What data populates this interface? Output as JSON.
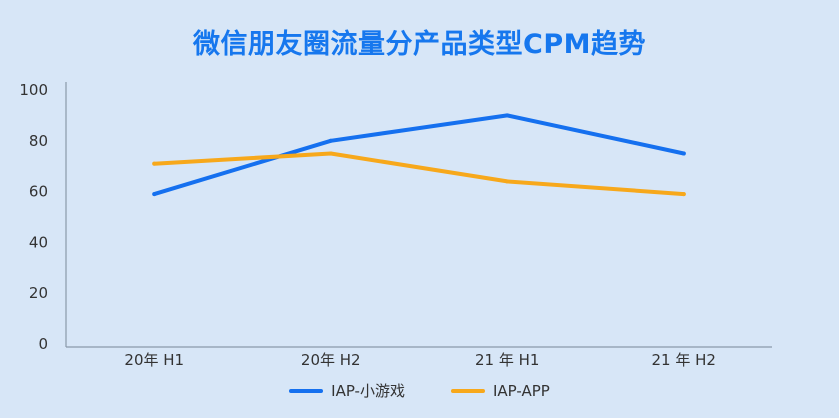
{
  "chart_data": {
    "type": "line",
    "title": "微信朋友圈流量分产品类型CPM趋势",
    "categories": [
      "20年 H1",
      "20年 H2",
      "21 年 H1",
      "21 年 H2"
    ],
    "ylim": [
      0,
      100
    ],
    "yticks": [
      0,
      20,
      40,
      60,
      80,
      100
    ],
    "grid": false,
    "legend_position": "bottom",
    "series": [
      {
        "name": "IAP-小游戏",
        "color": "#1570ef",
        "values": [
          59,
          80,
          90,
          75
        ]
      },
      {
        "name": "IAP-APP",
        "color": "#f7a81b",
        "values": [
          71,
          75,
          64,
          59
        ]
      }
    ]
  }
}
